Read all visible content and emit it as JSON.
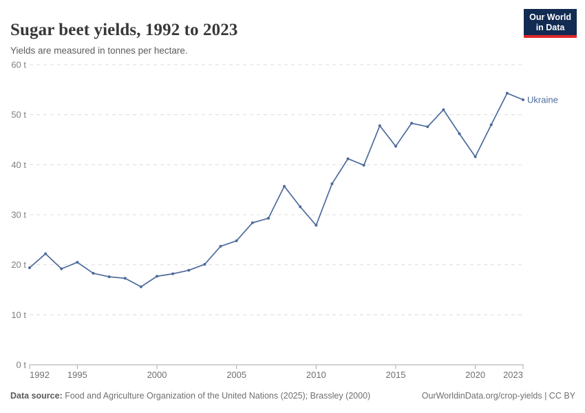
{
  "header": {
    "title": "Sugar beet yields, 1992 to 2023",
    "subtitle": "Yields are measured in tonnes per hectare.",
    "logo": {
      "line1": "Our World",
      "line2": "in Data"
    }
  },
  "colors": {
    "series_line": "#4c6a9c",
    "logo_bg": "#122b52",
    "logo_accent": "#e02828",
    "gridline": "#dcdcdc",
    "axis": "#a3a3a3"
  },
  "chart_data": {
    "type": "line",
    "title": "Sugar beet yields, 1992 to 2023",
    "subtitle": "Yields are measured in tonnes per hectare.",
    "xlabel": "",
    "ylabel": "tonnes per hectare",
    "xlim": [
      1992,
      2023
    ],
    "ylim": [
      0,
      60
    ],
    "grid": "horizontal-dashed",
    "legend_position": "end-of-line-label",
    "x_ticks": [
      {
        "v": 1992,
        "label": "1992"
      },
      {
        "v": 1995,
        "label": "1995"
      },
      {
        "v": 2000,
        "label": "2000"
      },
      {
        "v": 2005,
        "label": "2005"
      },
      {
        "v": 2010,
        "label": "2010"
      },
      {
        "v": 2015,
        "label": "2015"
      },
      {
        "v": 2020,
        "label": "2020"
      },
      {
        "v": 2023,
        "label": "2023"
      }
    ],
    "y_ticks": [
      {
        "v": 0,
        "label": "0 t"
      },
      {
        "v": 10,
        "label": "10 t"
      },
      {
        "v": 20,
        "label": "20 t"
      },
      {
        "v": 30,
        "label": "30 t"
      },
      {
        "v": 40,
        "label": "40 t"
      },
      {
        "v": 50,
        "label": "50 t"
      },
      {
        "v": 60,
        "label": "60 t"
      }
    ],
    "series": [
      {
        "name": "Ukraine",
        "color": "#4c6a9c",
        "x": [
          1992,
          1993,
          1994,
          1995,
          1996,
          1997,
          1998,
          1999,
          2000,
          2001,
          2002,
          2003,
          2004,
          2005,
          2006,
          2007,
          2008,
          2009,
          2010,
          2011,
          2012,
          2013,
          2014,
          2015,
          2016,
          2017,
          2018,
          2019,
          2020,
          2021,
          2022,
          2023
        ],
        "values": [
          19.4,
          22.2,
          19.2,
          20.5,
          18.3,
          17.6,
          17.3,
          15.6,
          17.7,
          18.2,
          18.9,
          20.1,
          23.7,
          24.8,
          28.4,
          29.3,
          35.7,
          31.6,
          27.9,
          36.2,
          41.2,
          39.9,
          47.8,
          43.7,
          48.3,
          47.6,
          51.0,
          46.2,
          41.6,
          48.0,
          54.3,
          53.0
        ]
      }
    ]
  },
  "footer": {
    "source_label": "Data source:",
    "source_text": " Food and Agriculture Organization of the United Nations (2025); Brassley (2000)",
    "attribution": "OurWorldinData.org/crop-yields | CC BY"
  }
}
